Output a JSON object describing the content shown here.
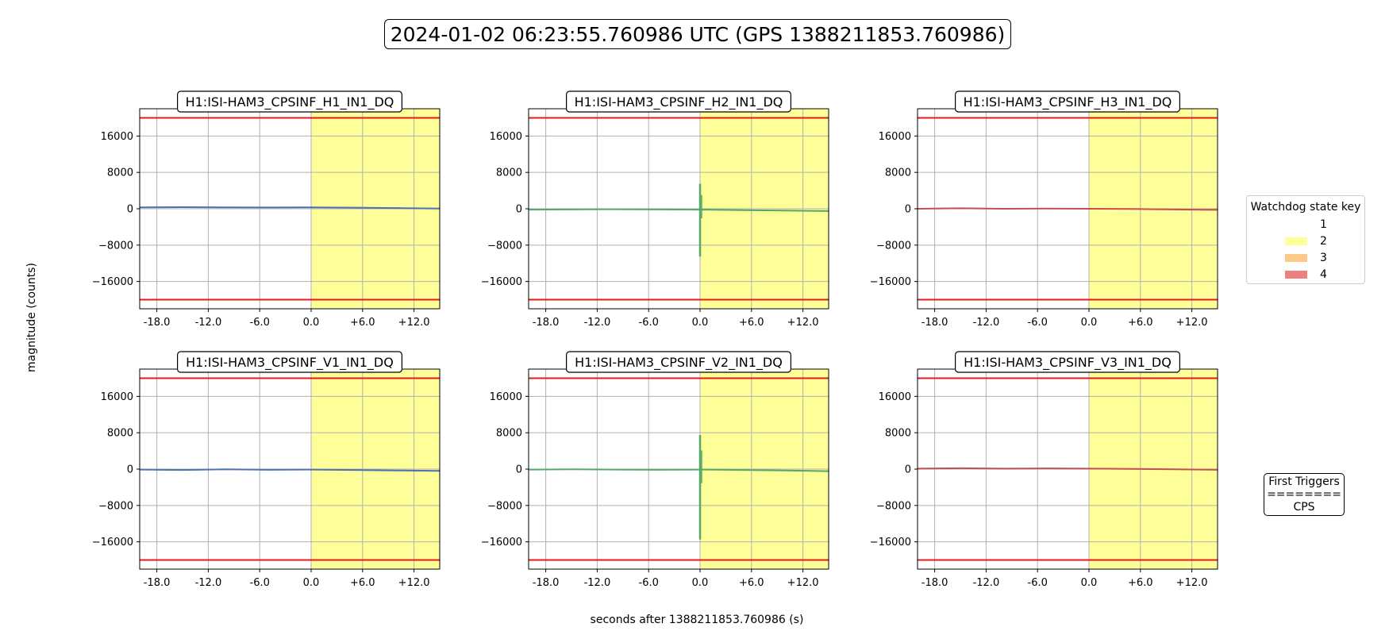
{
  "figure": {
    "title": "2024-01-02 06:23:55.760986 UTC (GPS 1388211853.760986)",
    "ylabel": "magnitude (counts)",
    "xlabel": "seconds after 1388211853.760986 (s)"
  },
  "legend": {
    "title": "Watchdog state key",
    "items": [
      {
        "label": "1",
        "color": "#ffffff"
      },
      {
        "label": "2",
        "color": "#ffff99"
      },
      {
        "label": "3",
        "color": "#fdc98a"
      },
      {
        "label": "4",
        "color": "#f08080"
      }
    ]
  },
  "triggers": {
    "line1": "First Triggers",
    "line2": "========",
    "line3": "CPS"
  },
  "chart_data": [
    {
      "type": "line",
      "title": "H1:ISI-HAM3_CPSINF_H1_IN1_DQ",
      "color": "#4c72b0",
      "xlim": [
        -20,
        15
      ],
      "ylim": [
        -22000,
        22000
      ],
      "xticks": [
        "-18.0",
        "-12.0",
        "-6.0",
        "0.0",
        "+6.0",
        "+12.0"
      ],
      "yticks": [
        "16000",
        "8000",
        "0",
        "−8000",
        "−16000"
      ],
      "thresholds": [
        20000,
        -20000
      ],
      "state2_from": 0,
      "state2_to": 15,
      "x": [
        -20,
        -15,
        -10,
        -5,
        0,
        5,
        10,
        15
      ],
      "y": [
        300,
        350,
        300,
        280,
        320,
        250,
        150,
        60
      ],
      "spike": null
    },
    {
      "type": "line",
      "title": "H1:ISI-HAM3_CPSINF_H2_IN1_DQ",
      "color": "#55a868",
      "xlim": [
        -20,
        15
      ],
      "ylim": [
        -22000,
        22000
      ],
      "xticks": [
        "-18.0",
        "-12.0",
        "-6.0",
        "0.0",
        "+6.0",
        "+12.0"
      ],
      "yticks": [
        "16000",
        "8000",
        "0",
        "−8000",
        "−16000"
      ],
      "thresholds": [
        20000,
        -20000
      ],
      "state2_from": 0,
      "state2_to": 15,
      "x": [
        -20,
        -15,
        -10,
        -5,
        0,
        5,
        10,
        15
      ],
      "y": [
        -200,
        -150,
        -100,
        -150,
        -200,
        -300,
        -400,
        -500
      ],
      "spike": [
        5500,
        -10500
      ]
    },
    {
      "type": "line",
      "title": "H1:ISI-HAM3_CPSINF_H3_IN1_DQ",
      "color": "#c44e52",
      "xlim": [
        -20,
        15
      ],
      "ylim": [
        -22000,
        22000
      ],
      "xticks": [
        "-18.0",
        "-12.0",
        "-6.0",
        "0.0",
        "+6.0",
        "+12.0"
      ],
      "yticks": [
        "16000",
        "8000",
        "0",
        "−8000",
        "−16000"
      ],
      "thresholds": [
        20000,
        -20000
      ],
      "state2_from": 0,
      "state2_to": 15,
      "x": [
        -20,
        -15,
        -10,
        -5,
        0,
        5,
        10,
        15
      ],
      "y": [
        0,
        100,
        0,
        50,
        0,
        -50,
        -150,
        -250
      ],
      "spike": null
    },
    {
      "type": "line",
      "title": "H1:ISI-HAM3_CPSINF_V1_IN1_DQ",
      "color": "#4c72b0",
      "xlim": [
        -20,
        15
      ],
      "ylim": [
        -22000,
        22000
      ],
      "xticks": [
        "-18.0",
        "-12.0",
        "-6.0",
        "0.0",
        "+6.0",
        "+12.0"
      ],
      "yticks": [
        "16000",
        "8000",
        "0",
        "−8000",
        "−16000"
      ],
      "thresholds": [
        20000,
        -20000
      ],
      "state2_from": 0,
      "state2_to": 15,
      "x": [
        -20,
        -15,
        -10,
        -5,
        0,
        5,
        10,
        15
      ],
      "y": [
        -100,
        -200,
        -50,
        -150,
        -100,
        -200,
        -300,
        -400
      ],
      "spike": null
    },
    {
      "type": "line",
      "title": "H1:ISI-HAM3_CPSINF_V2_IN1_DQ",
      "color": "#55a868",
      "xlim": [
        -20,
        15
      ],
      "ylim": [
        -22000,
        22000
      ],
      "xticks": [
        "-18.0",
        "-12.0",
        "-6.0",
        "0.0",
        "+6.0",
        "+12.0"
      ],
      "yticks": [
        "16000",
        "8000",
        "0",
        "−8000",
        "−16000"
      ],
      "thresholds": [
        20000,
        -20000
      ],
      "state2_from": 0,
      "state2_to": 15,
      "x": [
        -20,
        -15,
        -10,
        -5,
        0,
        5,
        10,
        15
      ],
      "y": [
        -100,
        -50,
        -100,
        -150,
        -100,
        -200,
        -300,
        -450
      ],
      "spike": [
        7500,
        -15500
      ]
    },
    {
      "type": "line",
      "title": "H1:ISI-HAM3_CPSINF_V3_IN1_DQ",
      "color": "#c44e52",
      "xlim": [
        -20,
        15
      ],
      "ylim": [
        -22000,
        22000
      ],
      "xticks": [
        "-18.0",
        "-12.0",
        "-6.0",
        "0.0",
        "+6.0",
        "+12.0"
      ],
      "yticks": [
        "16000",
        "8000",
        "0",
        "−8000",
        "−16000"
      ],
      "thresholds": [
        20000,
        -20000
      ],
      "state2_from": 0,
      "state2_to": 15,
      "x": [
        -20,
        -15,
        -10,
        -5,
        0,
        5,
        10,
        15
      ],
      "y": [
        100,
        200,
        100,
        150,
        100,
        50,
        -50,
        -150
      ],
      "spike": null
    }
  ]
}
